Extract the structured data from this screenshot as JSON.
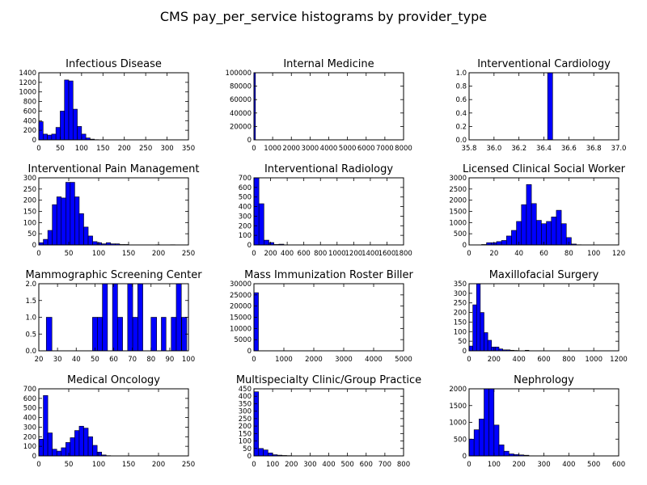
{
  "title": "CMS pay_per_service histograms by provider_type",
  "chart_data": [
    {
      "type": "bar",
      "title": "Infectious Disease",
      "xlim": [
        0,
        350
      ],
      "ylim": [
        0,
        1400
      ],
      "xticks": [
        0,
        50,
        100,
        150,
        200,
        250,
        300,
        350
      ],
      "yticks": [
        0,
        200,
        400,
        600,
        800,
        1000,
        1200,
        1400
      ],
      "bins": [
        [
          0,
          10,
          380
        ],
        [
          10,
          20,
          120
        ],
        [
          20,
          30,
          100
        ],
        [
          30,
          40,
          120
        ],
        [
          40,
          50,
          260
        ],
        [
          50,
          60,
          600
        ],
        [
          60,
          70,
          1250
        ],
        [
          70,
          80,
          1230
        ],
        [
          80,
          90,
          640
        ],
        [
          90,
          100,
          280
        ],
        [
          100,
          110,
          120
        ],
        [
          110,
          120,
          40
        ],
        [
          120,
          130,
          15
        ],
        [
          130,
          140,
          5
        ]
      ]
    },
    {
      "type": "bar",
      "title": "Internal Medicine",
      "xlim": [
        0,
        8000
      ],
      "ylim": [
        0,
        100000
      ],
      "xticks": [
        0,
        1000,
        2000,
        3000,
        4000,
        5000,
        6000,
        7000,
        8000
      ],
      "yticks": [
        0,
        20000,
        40000,
        60000,
        80000,
        100000
      ],
      "bins": [
        [
          0,
          80,
          100000
        ]
      ]
    },
    {
      "type": "bar",
      "title": "Interventional Cardiology",
      "xlim": [
        35.8,
        37.0
      ],
      "ylim": [
        0,
        1.0
      ],
      "xticks": [
        35.8,
        36.0,
        36.2,
        36.4,
        36.6,
        36.8,
        37.0
      ],
      "yticks": [
        0,
        0.2,
        0.4,
        0.6,
        0.8,
        1.0
      ],
      "bins": [
        [
          36.43,
          36.47,
          1.0
        ]
      ]
    },
    {
      "type": "bar",
      "title": "Interventional Pain Management",
      "xlim": [
        0,
        250
      ],
      "ylim": [
        0,
        300
      ],
      "xticks": [
        0,
        50,
        100,
        150,
        200,
        250
      ],
      "yticks": [
        0,
        50,
        100,
        150,
        200,
        250,
        300
      ],
      "bins": [
        [
          0,
          7.5,
          10
        ],
        [
          7.5,
          15,
          25
        ],
        [
          15,
          22.5,
          65
        ],
        [
          22.5,
          30,
          180
        ],
        [
          30,
          37.5,
          215
        ],
        [
          37.5,
          45,
          210
        ],
        [
          45,
          52.5,
          280
        ],
        [
          52.5,
          60,
          280
        ],
        [
          60,
          67.5,
          215
        ],
        [
          67.5,
          75,
          140
        ],
        [
          75,
          82.5,
          80
        ],
        [
          82.5,
          90,
          40
        ],
        [
          90,
          97.5,
          15
        ],
        [
          97.5,
          105,
          10
        ],
        [
          105,
          112.5,
          5
        ],
        [
          112.5,
          120,
          10
        ],
        [
          120,
          127.5,
          5
        ],
        [
          127.5,
          135,
          5
        ],
        [
          135,
          142.5,
          2
        ],
        [
          142.5,
          150,
          2
        ],
        [
          195,
          202.5,
          1
        ],
        [
          220,
          227.5,
          1
        ]
      ]
    },
    {
      "type": "bar",
      "title": "Interventional Radiology",
      "xlim": [
        0,
        1800
      ],
      "ylim": [
        0,
        700
      ],
      "xticks": [
        0,
        200,
        400,
        600,
        800,
        1000,
        1200,
        1400,
        1600,
        1800
      ],
      "yticks": [
        0,
        100,
        200,
        300,
        400,
        500,
        600,
        700
      ],
      "bins": [
        [
          0,
          60,
          700
        ],
        [
          60,
          120,
          430
        ],
        [
          120,
          180,
          50
        ],
        [
          180,
          240,
          25
        ],
        [
          240,
          300,
          5
        ],
        [
          300,
          360,
          8
        ]
      ]
    },
    {
      "type": "bar",
      "title": "Licensed Clinical Social Worker",
      "xlim": [
        0,
        120
      ],
      "ylim": [
        0,
        3000
      ],
      "xticks": [
        0,
        20,
        40,
        60,
        80,
        100,
        120
      ],
      "yticks": [
        0,
        500,
        1000,
        1500,
        2000,
        2500,
        3000
      ],
      "bins": [
        [
          10,
          14,
          20
        ],
        [
          14,
          18,
          100
        ],
        [
          18,
          22,
          100
        ],
        [
          22,
          26,
          150
        ],
        [
          26,
          30,
          200
        ],
        [
          30,
          34,
          400
        ],
        [
          34,
          38,
          650
        ],
        [
          38,
          42,
          1050
        ],
        [
          42,
          46,
          1800
        ],
        [
          46,
          50,
          2700
        ],
        [
          50,
          54,
          1850
        ],
        [
          54,
          58,
          1100
        ],
        [
          58,
          62,
          950
        ],
        [
          62,
          66,
          1050
        ],
        [
          66,
          70,
          1250
        ],
        [
          70,
          74,
          1550
        ],
        [
          74,
          78,
          950
        ],
        [
          78,
          82,
          330
        ],
        [
          82,
          86,
          40
        ],
        [
          86,
          90,
          10
        ]
      ]
    },
    {
      "type": "bar",
      "title": "Mammographic Screening Center",
      "xlim": [
        20,
        100
      ],
      "ylim": [
        0,
        2.0
      ],
      "xticks": [
        20,
        30,
        40,
        50,
        60,
        70,
        80,
        90,
        100
      ],
      "yticks": [
        0,
        0.5,
        1.0,
        1.5,
        2.0
      ],
      "bins": [
        [
          24,
          27,
          1
        ],
        [
          48.7,
          51.3,
          1
        ],
        [
          51.3,
          54,
          1
        ],
        [
          54,
          56.7,
          2
        ],
        [
          59.4,
          62.1,
          2
        ],
        [
          62.1,
          64.8,
          1
        ],
        [
          67.5,
          70.2,
          2
        ],
        [
          70.2,
          72.9,
          1
        ],
        [
          72.9,
          75.6,
          2
        ],
        [
          80,
          83,
          1
        ],
        [
          85.5,
          88,
          1
        ],
        [
          90.8,
          93.5,
          1
        ],
        [
          93.5,
          96.2,
          2
        ],
        [
          96.4,
          99.1,
          1
        ]
      ]
    },
    {
      "type": "bar",
      "title": "Mass Immunization Roster Biller",
      "xlim": [
        0,
        5000
      ],
      "ylim": [
        0,
        30000
      ],
      "xticks": [
        0,
        1000,
        2000,
        3000,
        4000,
        5000
      ],
      "yticks": [
        0,
        5000,
        10000,
        15000,
        20000,
        25000,
        30000
      ],
      "bins": [
        [
          0,
          150,
          26000
        ]
      ]
    },
    {
      "type": "bar",
      "title": "Maxillofacial Surgery",
      "xlim": [
        0,
        1200
      ],
      "ylim": [
        0,
        350
      ],
      "xticks": [
        0,
        200,
        400,
        600,
        800,
        1000,
        1200
      ],
      "yticks": [
        0,
        50,
        100,
        150,
        200,
        250,
        300,
        350
      ],
      "bins": [
        [
          0,
          30,
          25
        ],
        [
          30,
          60,
          240
        ],
        [
          60,
          90,
          350
        ],
        [
          90,
          120,
          200
        ],
        [
          120,
          150,
          95
        ],
        [
          150,
          180,
          55
        ],
        [
          180,
          210,
          20
        ],
        [
          210,
          240,
          20
        ],
        [
          240,
          270,
          10
        ],
        [
          270,
          300,
          5
        ],
        [
          300,
          330,
          5
        ],
        [
          330,
          360,
          3
        ],
        [
          360,
          390,
          2
        ],
        [
          450,
          480,
          3
        ]
      ]
    },
    {
      "type": "bar",
      "title": "Medical Oncology",
      "xlim": [
        0,
        250
      ],
      "ylim": [
        0,
        700
      ],
      "xticks": [
        0,
        50,
        100,
        150,
        200,
        250
      ],
      "yticks": [
        0,
        100,
        200,
        300,
        400,
        500,
        600,
        700
      ],
      "bins": [
        [
          0,
          7.5,
          175
        ],
        [
          7.5,
          15,
          630
        ],
        [
          15,
          22.5,
          240
        ],
        [
          22.5,
          30,
          70
        ],
        [
          30,
          37.5,
          50
        ],
        [
          37.5,
          45,
          85
        ],
        [
          45,
          52.5,
          140
        ],
        [
          52.5,
          60,
          190
        ],
        [
          60,
          67.5,
          265
        ],
        [
          67.5,
          75,
          310
        ],
        [
          75,
          82.5,
          290
        ],
        [
          82.5,
          90,
          200
        ],
        [
          90,
          97.5,
          110
        ],
        [
          97.5,
          105,
          40
        ],
        [
          105,
          112.5,
          10
        ],
        [
          112.5,
          120,
          3
        ]
      ]
    },
    {
      "type": "bar",
      "title": "Multispecialty Clinic/Group Practice",
      "xlim": [
        0,
        800
      ],
      "ylim": [
        0,
        450
      ],
      "xticks": [
        0,
        100,
        200,
        300,
        400,
        500,
        600,
        700,
        800
      ],
      "yticks": [
        0,
        50,
        100,
        150,
        200,
        250,
        300,
        350,
        400,
        450
      ],
      "bins": [
        [
          0,
          25,
          430
        ],
        [
          25,
          50,
          50
        ],
        [
          50,
          75,
          40
        ],
        [
          75,
          100,
          20
        ],
        [
          100,
          125,
          8
        ],
        [
          125,
          150,
          5
        ],
        [
          150,
          175,
          3
        ],
        [
          175,
          200,
          2
        ]
      ]
    },
    {
      "type": "bar",
      "title": "Nephrology",
      "xlim": [
        0,
        600
      ],
      "ylim": [
        0,
        2000
      ],
      "xticks": [
        0,
        100,
        200,
        300,
        400,
        500,
        600
      ],
      "yticks": [
        0,
        500,
        1000,
        1500,
        2000
      ],
      "bins": [
        [
          0,
          20,
          500
        ],
        [
          20,
          40,
          780
        ],
        [
          40,
          60,
          1100
        ],
        [
          60,
          80,
          2000
        ],
        [
          80,
          100,
          2000
        ],
        [
          100,
          120,
          920
        ],
        [
          120,
          140,
          330
        ],
        [
          140,
          160,
          140
        ],
        [
          160,
          180,
          60
        ],
        [
          180,
          200,
          40
        ],
        [
          200,
          220,
          30
        ],
        [
          220,
          240,
          20
        ],
        [
          240,
          260,
          5
        ]
      ]
    }
  ]
}
